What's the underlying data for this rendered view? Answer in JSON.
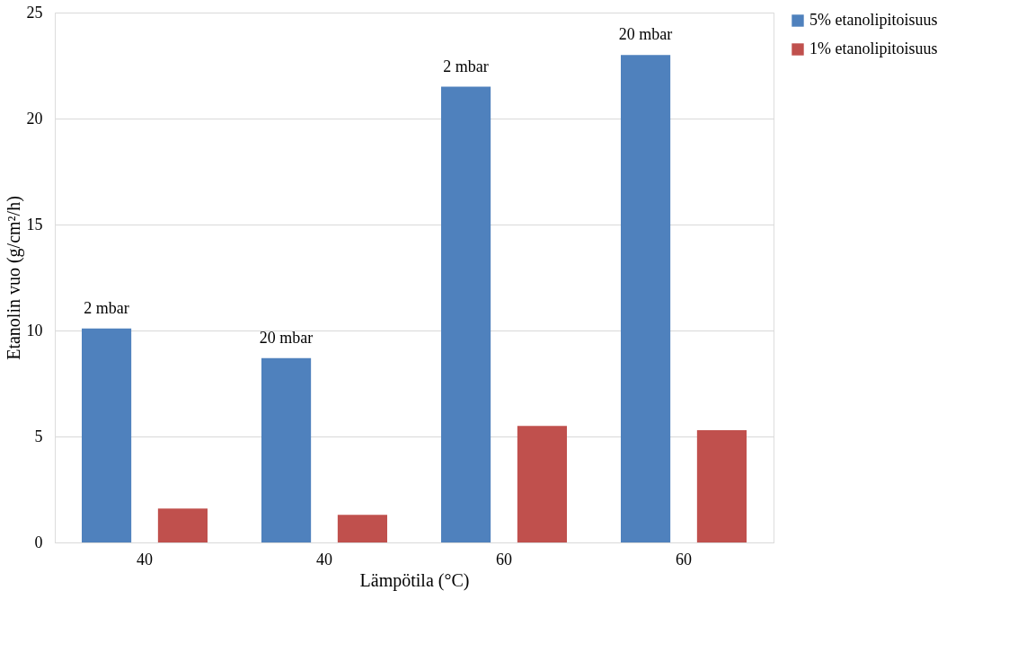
{
  "chart_data": {
    "type": "bar",
    "xlabel": "Lämpötila (°C)",
    "ylabel": "Etanolin vuo (g/cm²/h)",
    "categories": [
      "40",
      "40",
      "60",
      "60"
    ],
    "series": [
      {
        "name": "5% etanolipitoisuus",
        "color": "#4f81bd",
        "values": [
          10.1,
          8.7,
          21.5,
          23.0
        ]
      },
      {
        "name": "1% etanolipitoisuus",
        "color": "#c0504d",
        "values": [
          1.6,
          1.3,
          5.5,
          5.3
        ]
      }
    ],
    "annotations": [
      "2 mbar",
      "20 mbar",
      "2 mbar",
      "20 mbar"
    ],
    "ylim": [
      0,
      25
    ],
    "yticks": [
      0,
      5,
      10,
      15,
      20,
      25
    ],
    "grid": "y",
    "legend": "right"
  }
}
